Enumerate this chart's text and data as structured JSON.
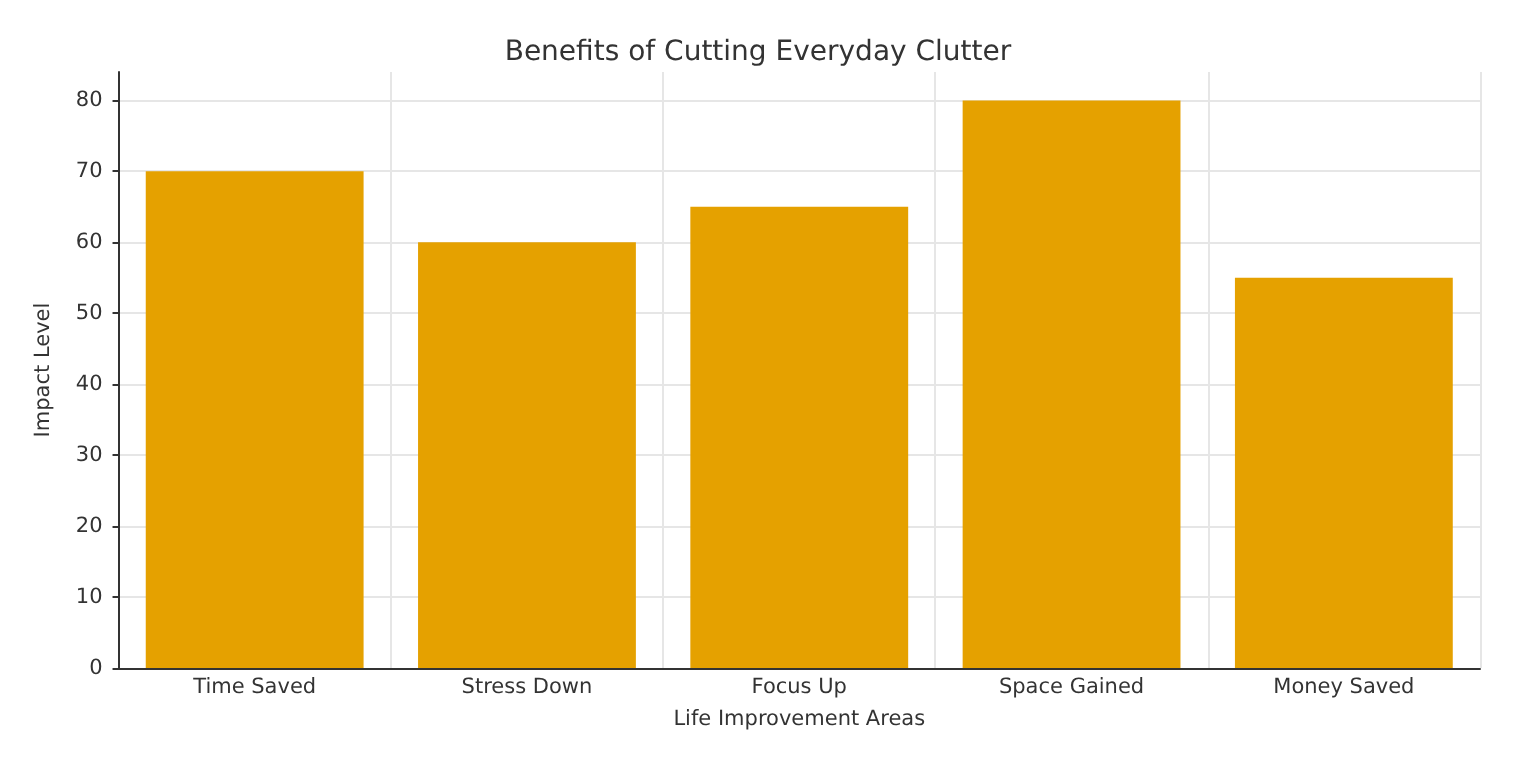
{
  "chart_data": {
    "type": "bar",
    "title": "Benefits of Cutting Everyday Clutter",
    "xlabel": "Life Improvement Areas",
    "ylabel": "Impact Level",
    "categories": [
      "Time Saved",
      "Stress Down",
      "Focus Up",
      "Space Gained",
      "Money Saved"
    ],
    "values": [
      70,
      60,
      65,
      80,
      55
    ],
    "color": "#e5a100",
    "ylim": [
      0,
      84
    ],
    "yticks": [
      0,
      10,
      20,
      30,
      40,
      50,
      60,
      70,
      80
    ],
    "grid": true
  }
}
